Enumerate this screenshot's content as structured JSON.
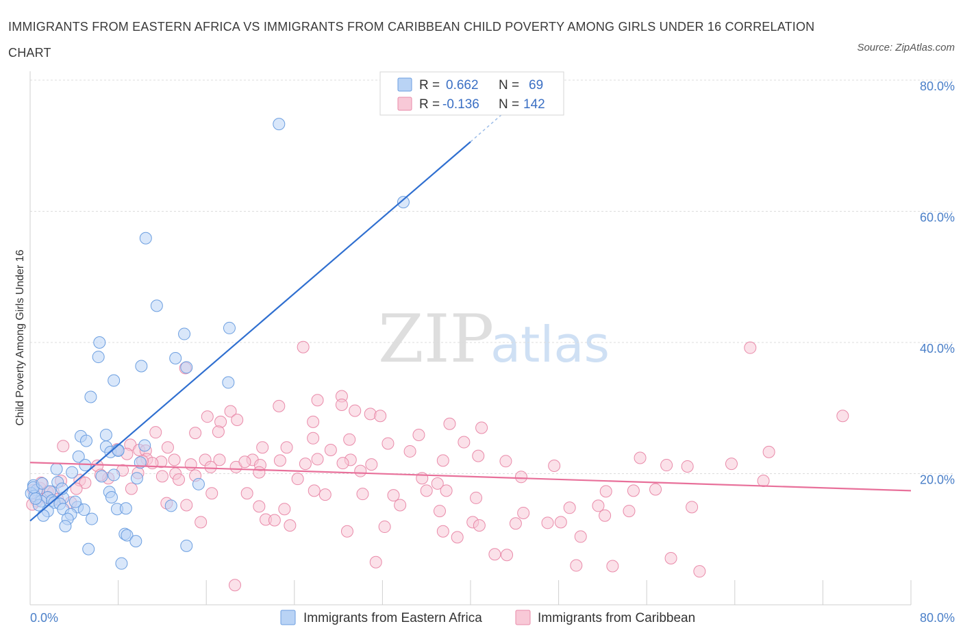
{
  "title": "IMMIGRANTS FROM EASTERN AFRICA VS IMMIGRANTS FROM CARIBBEAN CHILD POVERTY AMONG GIRLS UNDER 16 CORRELATION CHART",
  "source": "Source: ZipAtlas.com",
  "watermark": {
    "zip": "ZIP",
    "atlas": "atlas"
  },
  "colors": {
    "blue_fill": "#b9d3f5",
    "blue_stroke": "#6b9ee0",
    "blue_line": "#2f6fd0",
    "pink_fill": "#f8c9d7",
    "pink_stroke": "#e98aa9",
    "pink_line": "#e8709a",
    "grid": "#dcdcdc",
    "tick_text": "#4a7fc8"
  },
  "legend": {
    "rows": [
      {
        "r_label": "R =",
        "r_value": "0.662",
        "n_label": "N =",
        "n_value": "69"
      },
      {
        "r_label": "R =",
        "r_value": "-0.136",
        "n_label": "N =",
        "n_value": "142"
      }
    ]
  },
  "bottom_legend": [
    "Immigrants from Eastern Africa",
    "Immigrants from Caribbean"
  ],
  "chart_data": {
    "type": "scatter",
    "xlabel": "",
    "ylabel": "Child Poverty Among Girls Under 16",
    "xlim": [
      0,
      80
    ],
    "ylim": [
      0,
      80
    ],
    "x_tick_labels": [
      "0.0%",
      "80.0%"
    ],
    "y_tick_labels": [
      "20.0%",
      "40.0%",
      "60.0%",
      "80.0%"
    ],
    "y_ticks": [
      20,
      40,
      60,
      80
    ],
    "grid": true,
    "legend_position": "top-center",
    "series": [
      {
        "name": "Immigrants from Eastern Africa",
        "r": 0.662,
        "n": 69,
        "trend": {
          "x": [
            0,
            40
          ],
          "y": [
            12.8,
            70.6
          ],
          "dashed_to": [
            43.0,
            75.0
          ]
        },
        "points": [
          [
            22.6,
            73.3
          ],
          [
            33.9,
            61.4
          ],
          [
            10.5,
            55.9
          ],
          [
            11.5,
            45.6
          ],
          [
            18.1,
            42.2
          ],
          [
            14.0,
            41.3
          ],
          [
            6.3,
            40.0
          ],
          [
            6.2,
            37.8
          ],
          [
            13.2,
            37.6
          ],
          [
            10.1,
            36.4
          ],
          [
            14.2,
            36.2
          ],
          [
            18.0,
            33.9
          ],
          [
            7.6,
            34.2
          ],
          [
            5.5,
            31.7
          ],
          [
            6.9,
            25.9
          ],
          [
            4.6,
            25.7
          ],
          [
            5.1,
            25.0
          ],
          [
            10.4,
            24.3
          ],
          [
            6.9,
            24.1
          ],
          [
            7.3,
            23.3
          ],
          [
            8.0,
            23.6
          ],
          [
            8.0,
            23.5
          ],
          [
            4.4,
            22.6
          ],
          [
            10.0,
            21.7
          ],
          [
            5.0,
            21.3
          ],
          [
            2.4,
            20.7
          ],
          [
            3.8,
            20.2
          ],
          [
            7.6,
            19.8
          ],
          [
            9.7,
            19.3
          ],
          [
            2.5,
            18.7
          ],
          [
            15.3,
            18.4
          ],
          [
            0.3,
            18.2
          ],
          [
            0.6,
            17.5
          ],
          [
            1.8,
            17.3
          ],
          [
            7.2,
            17.2
          ],
          [
            0.1,
            17.0
          ],
          [
            0.4,
            16.6
          ],
          [
            1.6,
            16.4
          ],
          [
            7.4,
            16.4
          ],
          [
            3.0,
            16.3
          ],
          [
            2.0,
            15.9
          ],
          [
            2.2,
            15.6
          ],
          [
            1.0,
            15.8
          ],
          [
            2.7,
            15.4
          ],
          [
            0.8,
            15.2
          ],
          [
            12.8,
            15.1
          ],
          [
            4.3,
            14.9
          ],
          [
            4.9,
            14.5
          ],
          [
            7.9,
            14.6
          ],
          [
            8.7,
            14.7
          ],
          [
            3.0,
            14.6
          ],
          [
            1.6,
            14.3
          ],
          [
            1.2,
            13.6
          ],
          [
            3.7,
            13.8
          ],
          [
            5.6,
            13.1
          ],
          [
            3.4,
            13.1
          ],
          [
            3.2,
            12.0
          ],
          [
            8.6,
            10.8
          ],
          [
            8.8,
            10.6
          ],
          [
            9.6,
            9.7
          ],
          [
            14.2,
            9.0
          ],
          [
            5.3,
            8.5
          ],
          [
            8.3,
            6.3
          ],
          [
            0.3,
            17.9
          ],
          [
            1.1,
            18.5
          ],
          [
            0.5,
            16.2
          ],
          [
            2.9,
            17.7
          ],
          [
            6.5,
            19.6
          ],
          [
            4.1,
            15.7
          ]
        ]
      },
      {
        "name": "Immigrants from Caribbean",
        "r": -0.136,
        "n": 142,
        "trend": {
          "x": [
            0,
            80
          ],
          "y": [
            21.7,
            17.4
          ]
        },
        "points": [
          [
            24.8,
            39.3
          ],
          [
            65.4,
            39.2
          ],
          [
            14.1,
            36.1
          ],
          [
            26.1,
            31.2
          ],
          [
            28.3,
            31.8
          ],
          [
            22.6,
            30.3
          ],
          [
            28.3,
            30.5
          ],
          [
            18.2,
            29.5
          ],
          [
            29.5,
            29.6
          ],
          [
            30.9,
            29.1
          ],
          [
            73.8,
            28.8
          ],
          [
            16.1,
            28.7
          ],
          [
            31.8,
            28.8
          ],
          [
            18.8,
            28.2
          ],
          [
            17.3,
            27.9
          ],
          [
            25.7,
            27.9
          ],
          [
            38.1,
            27.6
          ],
          [
            41.0,
            27.0
          ],
          [
            11.4,
            26.3
          ],
          [
            17.1,
            26.4
          ],
          [
            15.0,
            26.2
          ],
          [
            35.3,
            25.9
          ],
          [
            25.7,
            25.4
          ],
          [
            29.0,
            25.2
          ],
          [
            39.4,
            24.8
          ],
          [
            9.1,
            24.4
          ],
          [
            3.0,
            24.2
          ],
          [
            12.5,
            24.0
          ],
          [
            21.1,
            24.0
          ],
          [
            23.3,
            24.0
          ],
          [
            32.5,
            24.6
          ],
          [
            7.9,
            23.7
          ],
          [
            9.9,
            23.6
          ],
          [
            10.5,
            23.5
          ],
          [
            8.8,
            23.0
          ],
          [
            27.3,
            23.6
          ],
          [
            34.5,
            23.4
          ],
          [
            67.1,
            23.3
          ],
          [
            40.7,
            22.7
          ],
          [
            10.6,
            22.2
          ],
          [
            13.1,
            22.1
          ],
          [
            15.9,
            22.1
          ],
          [
            17.2,
            22.1
          ],
          [
            20.2,
            22.1
          ],
          [
            26.1,
            22.2
          ],
          [
            29.1,
            22.1
          ],
          [
            43.2,
            21.9
          ],
          [
            6.1,
            21.2
          ],
          [
            11.9,
            21.8
          ],
          [
            11.1,
            21.6
          ],
          [
            14.6,
            21.4
          ],
          [
            16.4,
            21.0
          ],
          [
            18.7,
            21.0
          ],
          [
            20.9,
            21.3
          ],
          [
            22.7,
            22.0
          ],
          [
            25.0,
            21.5
          ],
          [
            31.0,
            21.4
          ],
          [
            37.5,
            22.0
          ],
          [
            57.8,
            21.3
          ],
          [
            59.7,
            21.1
          ],
          [
            8.4,
            20.5
          ],
          [
            9.8,
            20.1
          ],
          [
            13.2,
            20.0
          ],
          [
            15.0,
            19.7
          ],
          [
            20.8,
            20.2
          ],
          [
            30.0,
            20.4
          ],
          [
            35.6,
            19.3
          ],
          [
            4.5,
            19.0
          ],
          [
            7.1,
            19.3
          ],
          [
            13.5,
            19.1
          ],
          [
            5.0,
            18.6
          ],
          [
            9.2,
            17.7
          ],
          [
            37.0,
            18.5
          ],
          [
            66.6,
            18.9
          ],
          [
            4.2,
            17.7
          ],
          [
            0.3,
            17.5
          ],
          [
            0.9,
            17.8
          ],
          [
            1.6,
            17.2
          ],
          [
            2.1,
            17.2
          ],
          [
            36.0,
            17.4
          ],
          [
            37.8,
            17.4
          ],
          [
            25.8,
            17.4
          ],
          [
            16.5,
            17.0
          ],
          [
            19.7,
            17.0
          ],
          [
            26.8,
            16.8
          ],
          [
            30.2,
            16.9
          ],
          [
            52.3,
            17.3
          ],
          [
            56.8,
            17.6
          ],
          [
            54.8,
            17.4
          ],
          [
            0.6,
            15.8
          ],
          [
            1.5,
            16.3
          ],
          [
            2.5,
            16.1
          ],
          [
            3.7,
            15.6
          ],
          [
            14.2,
            15.2
          ],
          [
            12.4,
            15.5
          ],
          [
            20.8,
            15.0
          ],
          [
            23.1,
            14.6
          ],
          [
            37.2,
            14.3
          ],
          [
            33.6,
            15.2
          ],
          [
            44.8,
            14.0
          ],
          [
            49.0,
            14.8
          ],
          [
            51.6,
            15.1
          ],
          [
            60.1,
            14.9
          ],
          [
            52.2,
            13.6
          ],
          [
            21.4,
            13.0
          ],
          [
            22.2,
            12.9
          ],
          [
            23.6,
            12.1
          ],
          [
            15.5,
            12.6
          ],
          [
            32.2,
            11.9
          ],
          [
            40.2,
            12.6
          ],
          [
            44.1,
            12.4
          ],
          [
            40.8,
            12.1
          ],
          [
            47.0,
            12.5
          ],
          [
            48.2,
            12.6
          ],
          [
            54.4,
            14.3
          ],
          [
            28.8,
            11.2
          ],
          [
            37.5,
            11.2
          ],
          [
            50.0,
            10.4
          ],
          [
            38.8,
            10.3
          ],
          [
            42.2,
            7.7
          ],
          [
            43.3,
            7.6
          ],
          [
            31.4,
            6.5
          ],
          [
            49.6,
            6.0
          ],
          [
            52.9,
            5.9
          ],
          [
            58.2,
            7.1
          ],
          [
            60.8,
            5.1
          ],
          [
            18.6,
            3.0
          ],
          [
            0.2,
            15.3
          ],
          [
            1.0,
            18.6
          ],
          [
            2.8,
            18.9
          ],
          [
            6.4,
            19.8
          ],
          [
            10.2,
            21.9
          ],
          [
            19.5,
            21.8
          ],
          [
            24.3,
            19.2
          ],
          [
            28.4,
            21.6
          ],
          [
            33.0,
            16.7
          ],
          [
            40.5,
            16.3
          ],
          [
            47.6,
            21.2
          ],
          [
            55.4,
            22.4
          ],
          [
            63.7,
            21.5
          ],
          [
            44.6,
            19.5
          ],
          [
            12.0,
            19.6
          ]
        ]
      }
    ]
  }
}
